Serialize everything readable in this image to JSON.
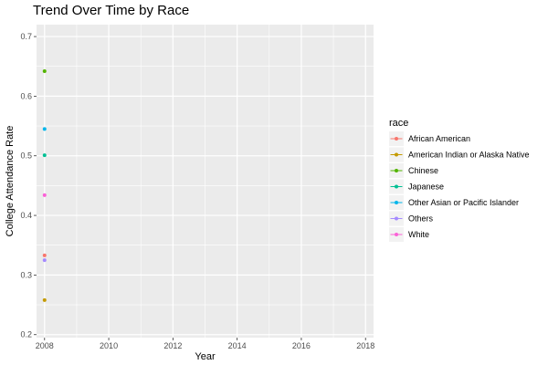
{
  "chart_data": {
    "type": "line",
    "title": "Trend Over Time by Race",
    "xlabel": "Year",
    "ylabel": "College Attendance Rate",
    "xlim": [
      2007.75,
      2018.25
    ],
    "ylim": [
      0.195,
      0.72
    ],
    "xticks": [
      2008,
      2010,
      2012,
      2014,
      2016,
      2018
    ],
    "xtick_labels": [
      "2008",
      "2010",
      "2012",
      "2014",
      "2016",
      "2018"
    ],
    "yticks": [
      0.2,
      0.3,
      0.4,
      0.5,
      0.6,
      0.7
    ],
    "ytick_labels": [
      "0.2",
      "0.3",
      "0.4",
      "0.5",
      "0.6",
      "0.7"
    ],
    "legend_title": "race",
    "legend_position": "right",
    "series": [
      {
        "name": "African American",
        "color": "#F8766D",
        "x": [
          2008
        ],
        "y": [
          0.333
        ]
      },
      {
        "name": "American Indian or Alaska Native",
        "color": "#C49A00",
        "x": [
          2008
        ],
        "y": [
          0.258
        ]
      },
      {
        "name": "Chinese",
        "color": "#53B400",
        "x": [
          2008
        ],
        "y": [
          0.642
        ]
      },
      {
        "name": "Japanese",
        "color": "#00C094",
        "x": [
          2008
        ],
        "y": [
          0.501
        ]
      },
      {
        "name": "Other Asian or Pacific Islander",
        "color": "#00B6EB",
        "x": [
          2008
        ],
        "y": [
          0.545
        ]
      },
      {
        "name": "Others",
        "color": "#A58AFF",
        "x": [
          2008
        ],
        "y": [
          0.325
        ]
      },
      {
        "name": "White",
        "color": "#FB61D7",
        "x": [
          2008
        ],
        "y": [
          0.434
        ]
      }
    ]
  }
}
